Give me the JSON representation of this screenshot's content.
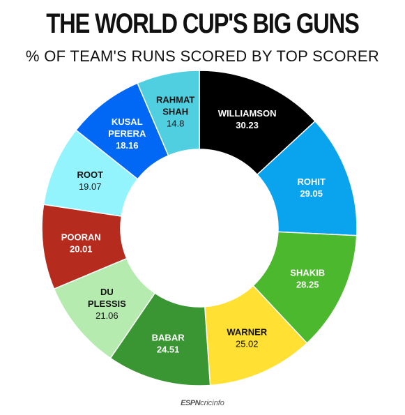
{
  "title": "THE WORLD CUP'S BIG GUNS",
  "subtitle": "% OF TEAM'S RUNS SCORED BY TOP SCORER",
  "logo": {
    "part1": "ESPN",
    "part2": "cricinfo"
  },
  "chart_data": {
    "type": "pie",
    "donut": true,
    "title": "THE WORLD CUP'S BIG GUNS",
    "subtitle": "% OF TEAM'S RUNS SCORED BY TOP SCORER",
    "slices": [
      {
        "label": [
          "WILLIAMSON"
        ],
        "value": 30.23,
        "color": "#000000",
        "text_color": "#ffffff",
        "bold_value": true
      },
      {
        "label": [
          "ROHIT"
        ],
        "value": 29.05,
        "color": "#0aa3ee",
        "text_color": "#ffffff",
        "bold_value": true
      },
      {
        "label": [
          "SHAKIB"
        ],
        "value": 28.25,
        "color": "#4cb82e",
        "text_color": "#ffffff",
        "bold_value": true
      },
      {
        "label": [
          "WARNER"
        ],
        "value": 25.02,
        "color": "#ffe033",
        "text_color": "#111111",
        "bold_value": false
      },
      {
        "label": [
          "BABAR"
        ],
        "value": 24.51,
        "color": "#3a9633",
        "text_color": "#ffffff",
        "bold_value": true
      },
      {
        "label": [
          "DU",
          "PLESSIS"
        ],
        "value": 21.06,
        "color": "#b6ebb0",
        "text_color": "#111111",
        "bold_value": false
      },
      {
        "label": [
          "POORAN"
        ],
        "value": 20.01,
        "color": "#b52b1e",
        "text_color": "#ffffff",
        "bold_value": true
      },
      {
        "label": [
          "ROOT"
        ],
        "value": 19.07,
        "color": "#94f4fd",
        "text_color": "#111111",
        "bold_value": false
      },
      {
        "label": [
          "KUSAL",
          "PERERA"
        ],
        "value": 18.16,
        "color": "#0068f5",
        "text_color": "#ffffff",
        "bold_value": true
      },
      {
        "label": [
          "RAHMAT",
          "SHAH"
        ],
        "value": 14.8,
        "color": "#4fcfdf",
        "text_color": "#111111",
        "bold_value": false
      }
    ]
  }
}
